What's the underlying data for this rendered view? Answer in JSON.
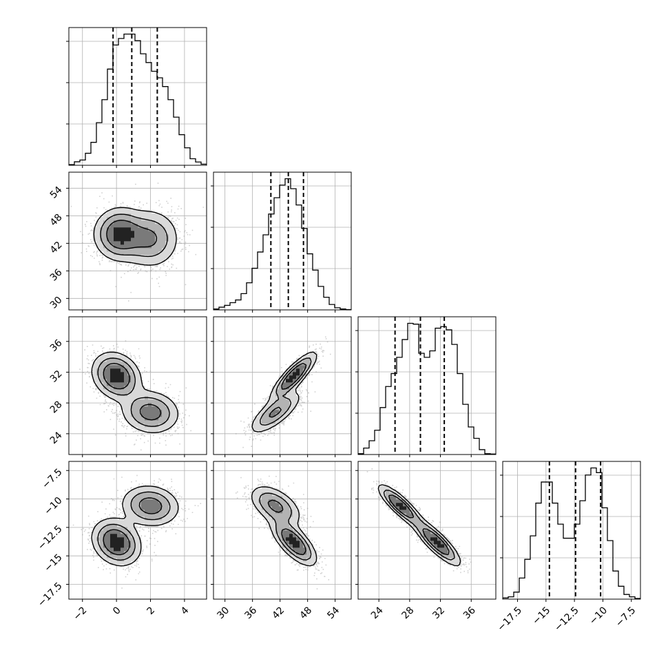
{
  "chart_data": {
    "type": "corner",
    "parameters": [
      {
        "range": [
          -2.8,
          5.3
        ],
        "ticks": [
          -2,
          0,
          2,
          4
        ],
        "quantiles": [
          -0.2,
          0.9,
          2.4
        ],
        "hist": [
          0.3,
          1.6,
          2.4,
          5.5,
          10.5,
          19.5,
          30,
          44,
          55,
          58,
          60,
          60,
          57,
          51,
          47,
          43,
          40,
          36,
          30,
          22,
          14,
          8,
          3,
          1.5,
          0.5
        ]
      },
      {
        "range": [
          27.5,
          57.5
        ],
        "ticks": [
          30,
          36,
          42,
          48,
          54
        ],
        "quantiles": [
          40.0,
          43.8,
          47.1
        ],
        "hist": [
          0.5,
          1.5,
          2.5,
          4,
          5.5,
          9,
          15,
          23,
          32,
          41.5,
          53,
          62,
          69,
          72.5,
          67,
          58,
          45,
          31,
          22,
          13,
          7,
          3,
          1.2,
          0.5,
          0.2
        ]
      },
      {
        "range": [
          21.3,
          39.2
        ],
        "ticks": [
          24,
          28,
          32,
          36
        ],
        "quantiles": [
          26.1,
          29.4,
          32.5
        ],
        "hist": [
          0.5,
          4,
          8.5,
          15,
          29,
          42,
          50,
          60,
          71,
          81,
          80.5,
          62.5,
          60,
          64,
          78,
          79,
          77,
          68,
          50,
          31,
          17,
          10,
          3,
          0.5,
          0.3
        ]
      },
      {
        "range": [
          -18.8,
          -6.7
        ],
        "ticks": [
          -17.5,
          -15.0,
          -12.5,
          -10.0,
          -7.5
        ],
        "quantiles": [
          -14.7,
          -12.4,
          -10.2
        ],
        "hist": [
          0.5,
          1,
          3,
          9,
          17,
          27,
          41,
          50,
          50,
          41,
          32,
          26,
          26,
          32,
          42,
          53,
          56,
          54,
          39,
          25,
          12,
          5.5,
          2,
          1,
          0.3
        ]
      }
    ],
    "pairs": [
      {
        "row": 1,
        "col": 0,
        "modes": [
          {
            "x": 0.2,
            "y": 44.0,
            "sx": 0.75,
            "sy": 2.8,
            "r": 0.0,
            "w": 0.55
          },
          {
            "x": 2.0,
            "y": 43.0,
            "sx": 0.85,
            "sy": 3.2,
            "r": 0.0,
            "w": 0.45
          }
        ]
      },
      {
        "row": 2,
        "col": 0,
        "modes": [
          {
            "x": 0.0,
            "y": 31.5,
            "sx": 0.7,
            "sy": 1.5,
            "r": -0.2,
            "w": 0.55
          },
          {
            "x": 2.0,
            "y": 26.8,
            "sx": 0.85,
            "sy": 1.4,
            "r": -0.1,
            "w": 0.45
          }
        ]
      },
      {
        "row": 2,
        "col": 1,
        "modes": [
          {
            "x": 45.0,
            "y": 31.5,
            "sx": 2.4,
            "sy": 1.5,
            "r": 0.85,
            "w": 0.55
          },
          {
            "x": 41.0,
            "y": 26.8,
            "sx": 2.8,
            "sy": 1.4,
            "r": 0.75,
            "w": 0.45
          }
        ]
      },
      {
        "row": 3,
        "col": 0,
        "modes": [
          {
            "x": 0.0,
            "y": -13.8,
            "sx": 0.7,
            "sy": 1.0,
            "r": -0.2,
            "w": 0.55
          },
          {
            "x": 2.0,
            "y": -10.6,
            "sx": 0.85,
            "sy": 0.9,
            "r": -0.1,
            "w": 0.45
          }
        ]
      },
      {
        "row": 3,
        "col": 1,
        "modes": [
          {
            "x": 45.0,
            "y": -13.8,
            "sx": 2.4,
            "sy": 1.0,
            "r": -0.7,
            "w": 0.55
          },
          {
            "x": 41.0,
            "y": -10.6,
            "sx": 2.8,
            "sy": 0.9,
            "r": -0.5,
            "w": 0.45
          }
        ]
      },
      {
        "row": 3,
        "col": 2,
        "modes": [
          {
            "x": 31.5,
            "y": -13.8,
            "sx": 1.5,
            "sy": 1.0,
            "r": -0.85,
            "w": 0.55
          },
          {
            "x": 26.8,
            "y": -10.6,
            "sx": 1.4,
            "sy": 0.9,
            "r": -0.85,
            "w": 0.45
          }
        ]
      }
    ],
    "grid": true
  }
}
